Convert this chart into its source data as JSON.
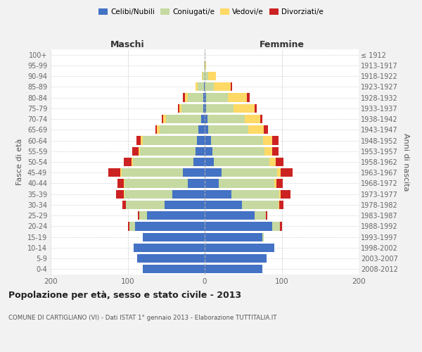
{
  "age_groups": [
    "100+",
    "95-99",
    "90-94",
    "85-89",
    "80-84",
    "75-79",
    "70-74",
    "65-69",
    "60-64",
    "55-59",
    "50-54",
    "45-49",
    "40-44",
    "35-39",
    "30-34",
    "25-29",
    "20-24",
    "15-19",
    "10-14",
    "5-9",
    "0-4"
  ],
  "birth_years": [
    "≤ 1912",
    "1913-1917",
    "1918-1922",
    "1923-1927",
    "1928-1932",
    "1933-1937",
    "1938-1942",
    "1943-1947",
    "1948-1952",
    "1953-1957",
    "1958-1962",
    "1963-1967",
    "1968-1972",
    "1973-1977",
    "1978-1982",
    "1983-1987",
    "1988-1992",
    "1993-1997",
    "1998-2002",
    "2003-2007",
    "2008-2012"
  ],
  "maschi": {
    "celibi": [
      0,
      0,
      0,
      1,
      2,
      2,
      5,
      8,
      10,
      12,
      15,
      28,
      22,
      42,
      52,
      75,
      90,
      80,
      92,
      88,
      80
    ],
    "coniugati": [
      0,
      1,
      3,
      8,
      20,
      28,
      45,
      50,
      70,
      72,
      78,
      80,
      82,
      62,
      50,
      10,
      8,
      0,
      0,
      0,
      0
    ],
    "vedovi": [
      0,
      0,
      1,
      3,
      4,
      3,
      4,
      4,
      3,
      2,
      2,
      2,
      1,
      1,
      0,
      0,
      0,
      0,
      0,
      0,
      0
    ],
    "divorziati": [
      0,
      0,
      0,
      0,
      2,
      2,
      2,
      2,
      6,
      8,
      10,
      15,
      8,
      10,
      5,
      2,
      2,
      0,
      0,
      0,
      0
    ]
  },
  "femmine": {
    "nubili": [
      0,
      0,
      0,
      0,
      2,
      2,
      4,
      5,
      8,
      10,
      12,
      22,
      18,
      35,
      48,
      65,
      88,
      75,
      90,
      80,
      75
    ],
    "coniugate": [
      0,
      1,
      5,
      12,
      28,
      35,
      48,
      52,
      68,
      68,
      72,
      72,
      72,
      62,
      48,
      14,
      10,
      2,
      0,
      0,
      0
    ],
    "vedove": [
      0,
      1,
      10,
      22,
      25,
      28,
      20,
      20,
      12,
      10,
      8,
      5,
      3,
      2,
      1,
      0,
      0,
      0,
      0,
      0,
      0
    ],
    "divorziate": [
      0,
      0,
      0,
      2,
      3,
      3,
      3,
      5,
      8,
      8,
      10,
      15,
      8,
      12,
      5,
      2,
      2,
      0,
      0,
      0,
      0
    ]
  },
  "colors": {
    "celibi": "#4472C4",
    "coniugati": "#C5D9A0",
    "vedovi": "#FFD966",
    "divorziati": "#CC2222"
  },
  "legend_labels": [
    "Celibi/Nubili",
    "Coniugati/e",
    "Vedovi/e",
    "Divorziati/e"
  ],
  "title": "Popolazione per età, sesso e stato civile - 2013",
  "subtitle": "COMUNE DI CARTIGLIANO (VI) - Dati ISTAT 1° gennaio 2013 - Elaborazione TUTTITALIA.IT",
  "maschi_label": "Maschi",
  "femmine_label": "Femmine",
  "ylabel_left": "Fasce di età",
  "ylabel_right": "Anni di nascita",
  "xlim": 200,
  "xtick_labels": [
    "200",
    "100",
    "0",
    "100",
    "200"
  ],
  "bg_color": "#f2f2f2",
  "plot_bg_color": "#ffffff"
}
